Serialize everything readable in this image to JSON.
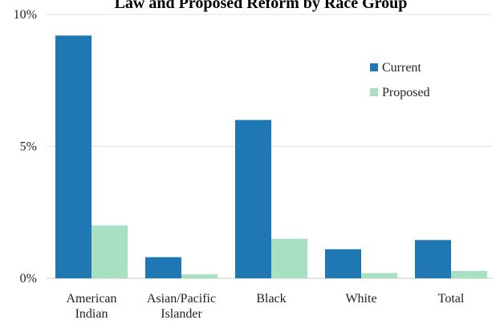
{
  "chart_data": {
    "type": "bar",
    "title": "Law and Proposed Reform by Race Group",
    "categories": [
      [
        "American",
        "Indian"
      ],
      [
        "Asian/Pacific",
        "Islander"
      ],
      [
        "Black"
      ],
      [
        "White"
      ],
      [
        "Total"
      ]
    ],
    "series": [
      {
        "name": "Current",
        "color": "#1f77b4",
        "values": [
          9.2,
          0.8,
          6.0,
          1.1,
          1.45
        ]
      },
      {
        "name": "Proposed",
        "color": "#a8e0c2",
        "values": [
          2.0,
          0.15,
          1.5,
          0.2,
          0.28
        ]
      }
    ],
    "ylim": [
      0,
      10
    ],
    "yticks": [
      {
        "value": 0,
        "label": "0%"
      },
      {
        "value": 5,
        "label": "5%"
      },
      {
        "value": 10,
        "label": "10%"
      }
    ],
    "grid": true,
    "legend_position": "top-right",
    "xlabel": "",
    "ylabel": ""
  }
}
